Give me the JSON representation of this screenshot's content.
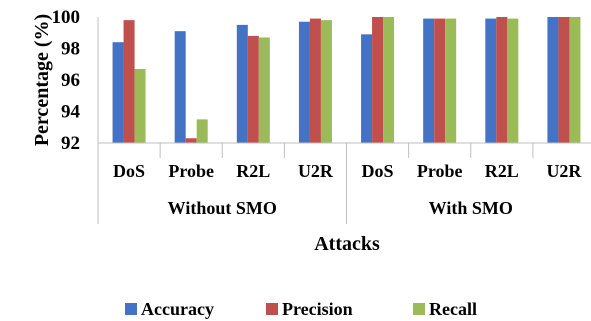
{
  "chart_data": {
    "type": "bar",
    "title": "",
    "xlabel": "Attacks",
    "ylabel": "Percentage (%)",
    "ylim": [
      92,
      100
    ],
    "yticks": [
      "92",
      "94",
      "96",
      "98",
      "100"
    ],
    "groups": [
      {
        "label": "Without SMO",
        "categories": [
          "DoS",
          "Probe",
          "R2L",
          "U2R"
        ]
      },
      {
        "label": "With SMO",
        "categories": [
          "DoS",
          "Probe",
          "R2L",
          "U2R"
        ]
      }
    ],
    "categories": [
      "DoS",
      "Probe",
      "R2L",
      "U2R",
      "DoS",
      "Probe",
      "R2L",
      "U2R"
    ],
    "series": [
      {
        "name": "Accuracy",
        "color": "#4472C4",
        "values": [
          98.4,
          99.1,
          99.5,
          99.7,
          98.9,
          99.9,
          99.9,
          100.0
        ]
      },
      {
        "name": "Precision",
        "color": "#C0504D",
        "values": [
          99.8,
          92.3,
          98.8,
          99.9,
          100.0,
          99.9,
          100.0,
          100.0
        ]
      },
      {
        "name": "Recall",
        "color": "#9BBB59",
        "values": [
          96.7,
          93.5,
          98.7,
          99.8,
          100.0,
          99.9,
          99.9,
          100.0
        ]
      }
    ],
    "grid": false,
    "legend_position": "bottom"
  }
}
